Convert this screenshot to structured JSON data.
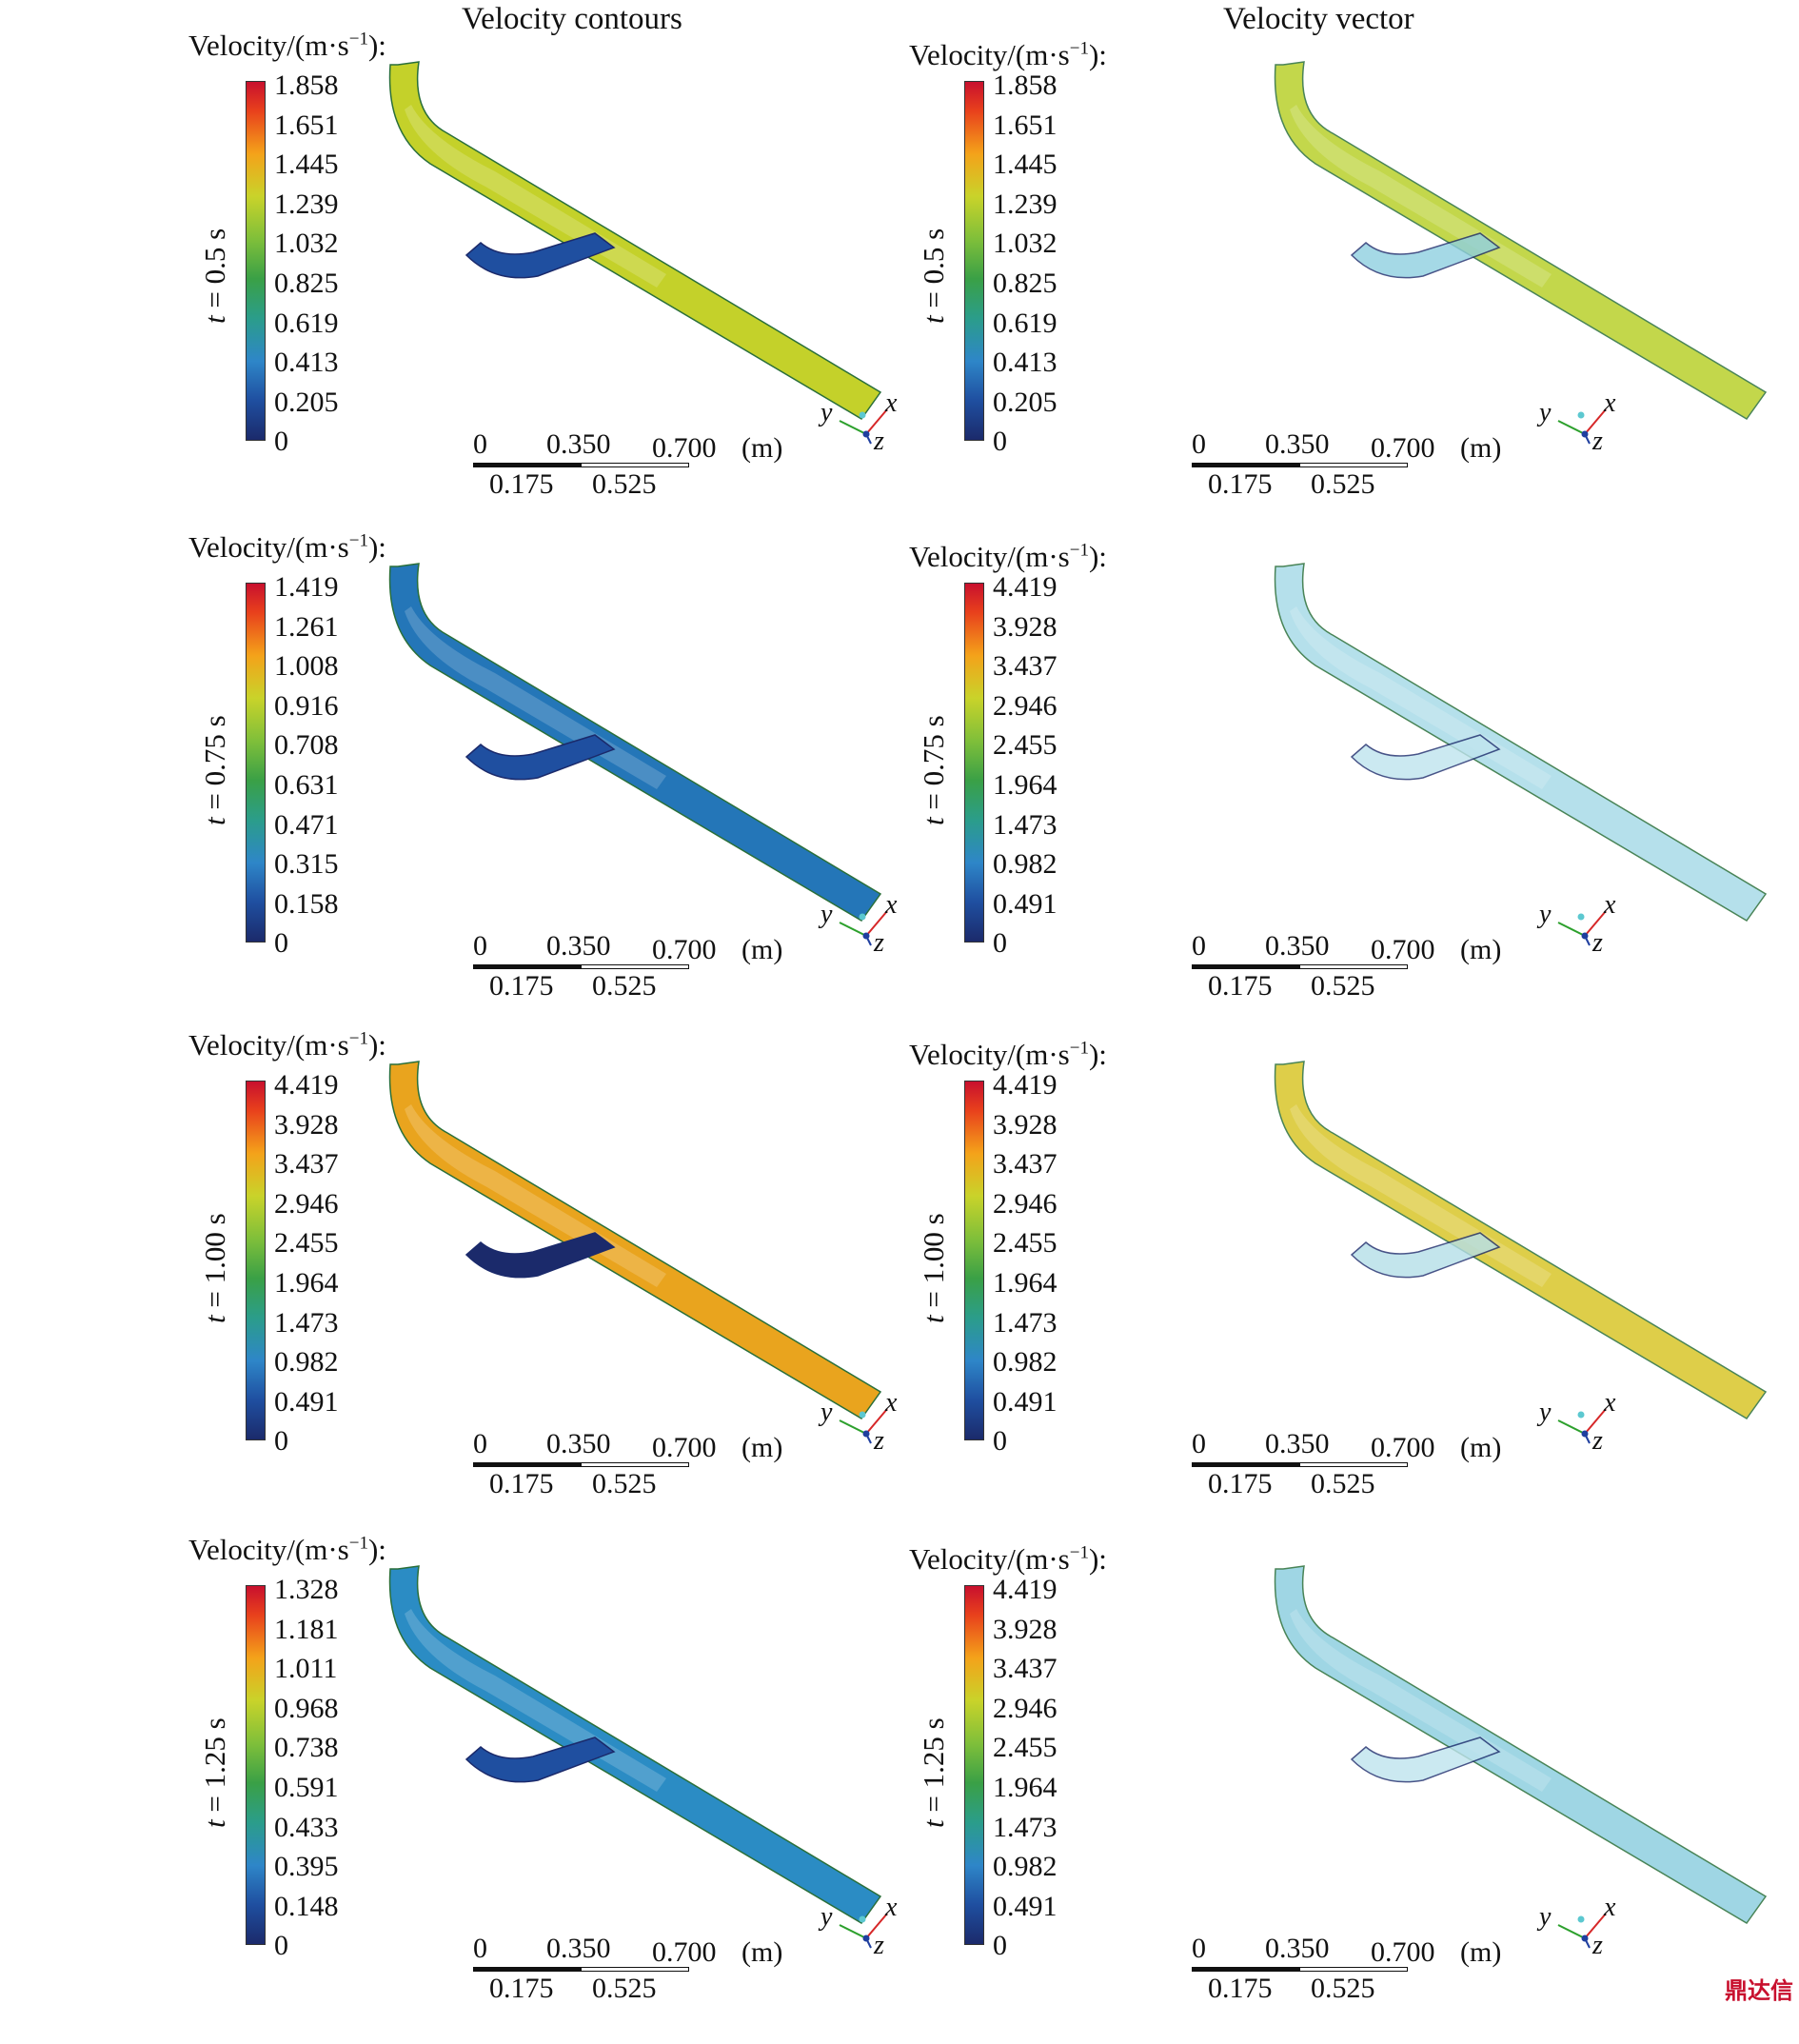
{
  "column_titles": [
    "Velocity contours",
    "Velocity vector"
  ],
  "colorbar_title": "Velocity/(m·s",
  "colorbar_title_exp": "−1",
  "colorbar_title_end": "):",
  "time_prefix": "t",
  "scalebar": {
    "top_labels": [
      "0",
      "0.350",
      "0.700"
    ],
    "bottom_labels": [
      "0.175",
      "0.525"
    ],
    "unit": "(m)"
  },
  "axes": {
    "x": "x",
    "y": "y",
    "z": "z"
  },
  "rows": [
    {
      "time": " = 0.5 s",
      "left_ticks": [
        "1.858",
        "1.651",
        "1.445",
        "1.239",
        "1.032",
        "0.825",
        "0.619",
        "0.413",
        "0.205",
        "0"
      ],
      "right_ticks": [
        "1.858",
        "1.651",
        "1.445",
        "1.239",
        "1.032",
        "0.825",
        "0.619",
        "0.413",
        "0.205",
        "0"
      ],
      "left_main_color": "#c4d12a",
      "left_branch_color": "#1f4fa0",
      "right_main_color": "#b9d12c",
      "right_branch_color": "#8fd0e0"
    },
    {
      "time": " = 0.75 s",
      "left_ticks": [
        "1.419",
        "1.261",
        "1.008",
        "0.916",
        "0.708",
        "0.631",
        "0.471",
        "0.315",
        "0.158",
        "0"
      ],
      "right_ticks": [
        "4.419",
        "3.928",
        "3.437",
        "2.946",
        "2.455",
        "1.964",
        "1.473",
        "0.982",
        "0.491",
        "0"
      ],
      "left_main_color": "#2476b8",
      "left_branch_color": "#1f4fa0",
      "right_main_color": "#a9dbe8",
      "right_branch_color": "#bfe4ee"
    },
    {
      "time": " = 1.00 s",
      "left_ticks": [
        "4.419",
        "3.928",
        "3.437",
        "2.946",
        "2.455",
        "1.964",
        "1.473",
        "0.982",
        "0.491",
        "0"
      ],
      "right_ticks": [
        "4.419",
        "3.928",
        "3.437",
        "2.946",
        "2.455",
        "1.964",
        "1.473",
        "0.982",
        "0.491",
        "0"
      ],
      "left_main_color": "#e9a41e",
      "left_branch_color": "#1b2a6b",
      "right_main_color": "#d9c62a",
      "right_branch_color": "#b5dfe8"
    },
    {
      "time": " = 1.25 s",
      "left_ticks": [
        "1.328",
        "1.181",
        "1.011",
        "0.968",
        "0.738",
        "0.591",
        "0.433",
        "0.395",
        "0.148",
        "0"
      ],
      "right_ticks": [
        "4.419",
        "3.928",
        "3.437",
        "2.946",
        "2.455",
        "1.964",
        "1.473",
        "0.982",
        "0.491",
        "0"
      ],
      "left_main_color": "#2b8cc4",
      "left_branch_color": "#1f4fa0",
      "right_main_color": "#8fd0e0",
      "right_branch_color": "#bfe4ee"
    }
  ],
  "watermark": "鼎达信"
}
